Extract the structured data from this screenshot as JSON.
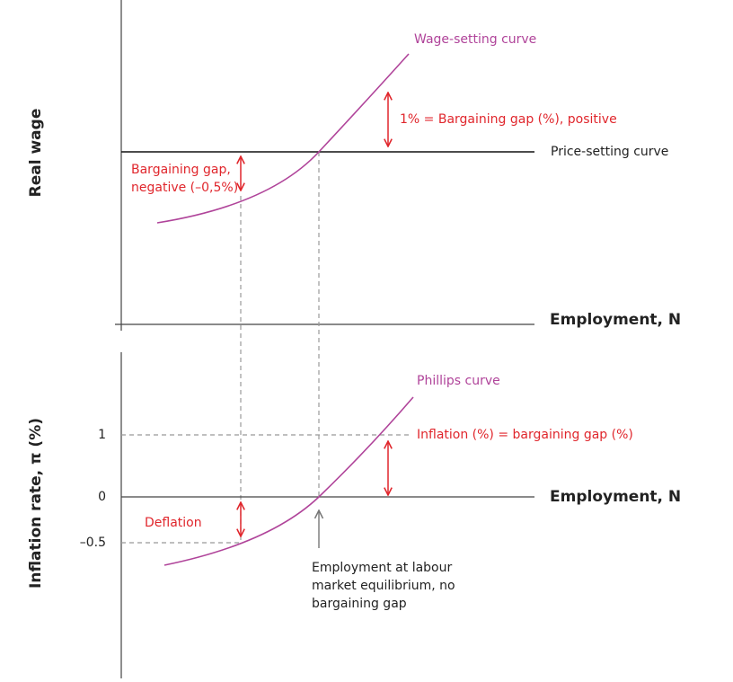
{
  "top_panel": {
    "y_label": "Real wage",
    "x_label": "Employment, N",
    "wage_setting_label": "Wage-setting curve",
    "price_setting_label": "Price-setting curve",
    "positive_gap_label": "1% = Bargaining gap (%), positive",
    "negative_gap_label": [
      "Bargaining gap,",
      "negative (–0,5%)"
    ]
  },
  "bottom_panel": {
    "y_label": "Inflation rate, π (%)",
    "x_label": "Employment, N",
    "ticks": [
      "1",
      "0",
      "–0.5"
    ],
    "phillips_label": "Phillips curve",
    "inflation_label": "Inflation (%) = bargaining gap (%)",
    "deflation_label": "Deflation",
    "equilibrium_note": [
      "Employment at labour",
      "market equilibrium, no",
      "bargaining gap"
    ]
  }
}
